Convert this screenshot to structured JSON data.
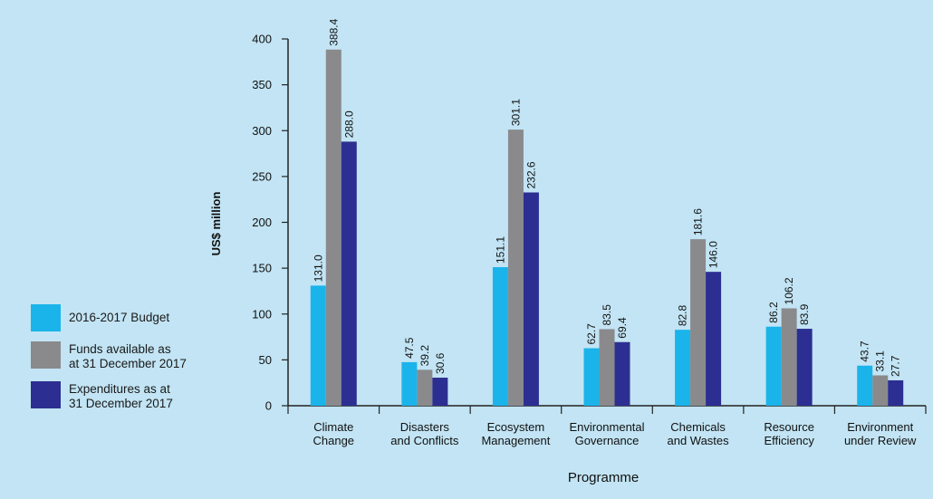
{
  "chart_data": {
    "type": "bar",
    "title": "",
    "xlabel": "Programme",
    "ylabel": "US$ million",
    "ylim": [
      0,
      400
    ],
    "yticks": [
      0,
      50,
      100,
      150,
      200,
      250,
      300,
      350,
      400
    ],
    "grid": false,
    "legend_position": "left",
    "categories": [
      "Climate\nChange",
      "Disasters\nand Conflicts",
      "Ecosystem\nManagement",
      "Environmental\nGovernance",
      "Chemicals\nand Wastes",
      "Resource\nEfficiency",
      "Environment\nunder Review"
    ],
    "series": [
      {
        "name": "2016-2017 Budget",
        "color": "#1ab4eb",
        "values": [
          131.0,
          47.5,
          151.1,
          62.7,
          82.8,
          86.2,
          43.7
        ]
      },
      {
        "name": "Funds available as\nat 31 December 2017",
        "color": "#8a8a8c",
        "values": [
          388.4,
          39.2,
          301.1,
          83.5,
          181.6,
          106.2,
          33.1
        ]
      },
      {
        "name": "Expenditures as at\n31 December 2017",
        "color": "#2c2f91",
        "values": [
          288.0,
          30.6,
          232.6,
          69.4,
          146.0,
          83.9,
          27.7
        ]
      }
    ]
  }
}
